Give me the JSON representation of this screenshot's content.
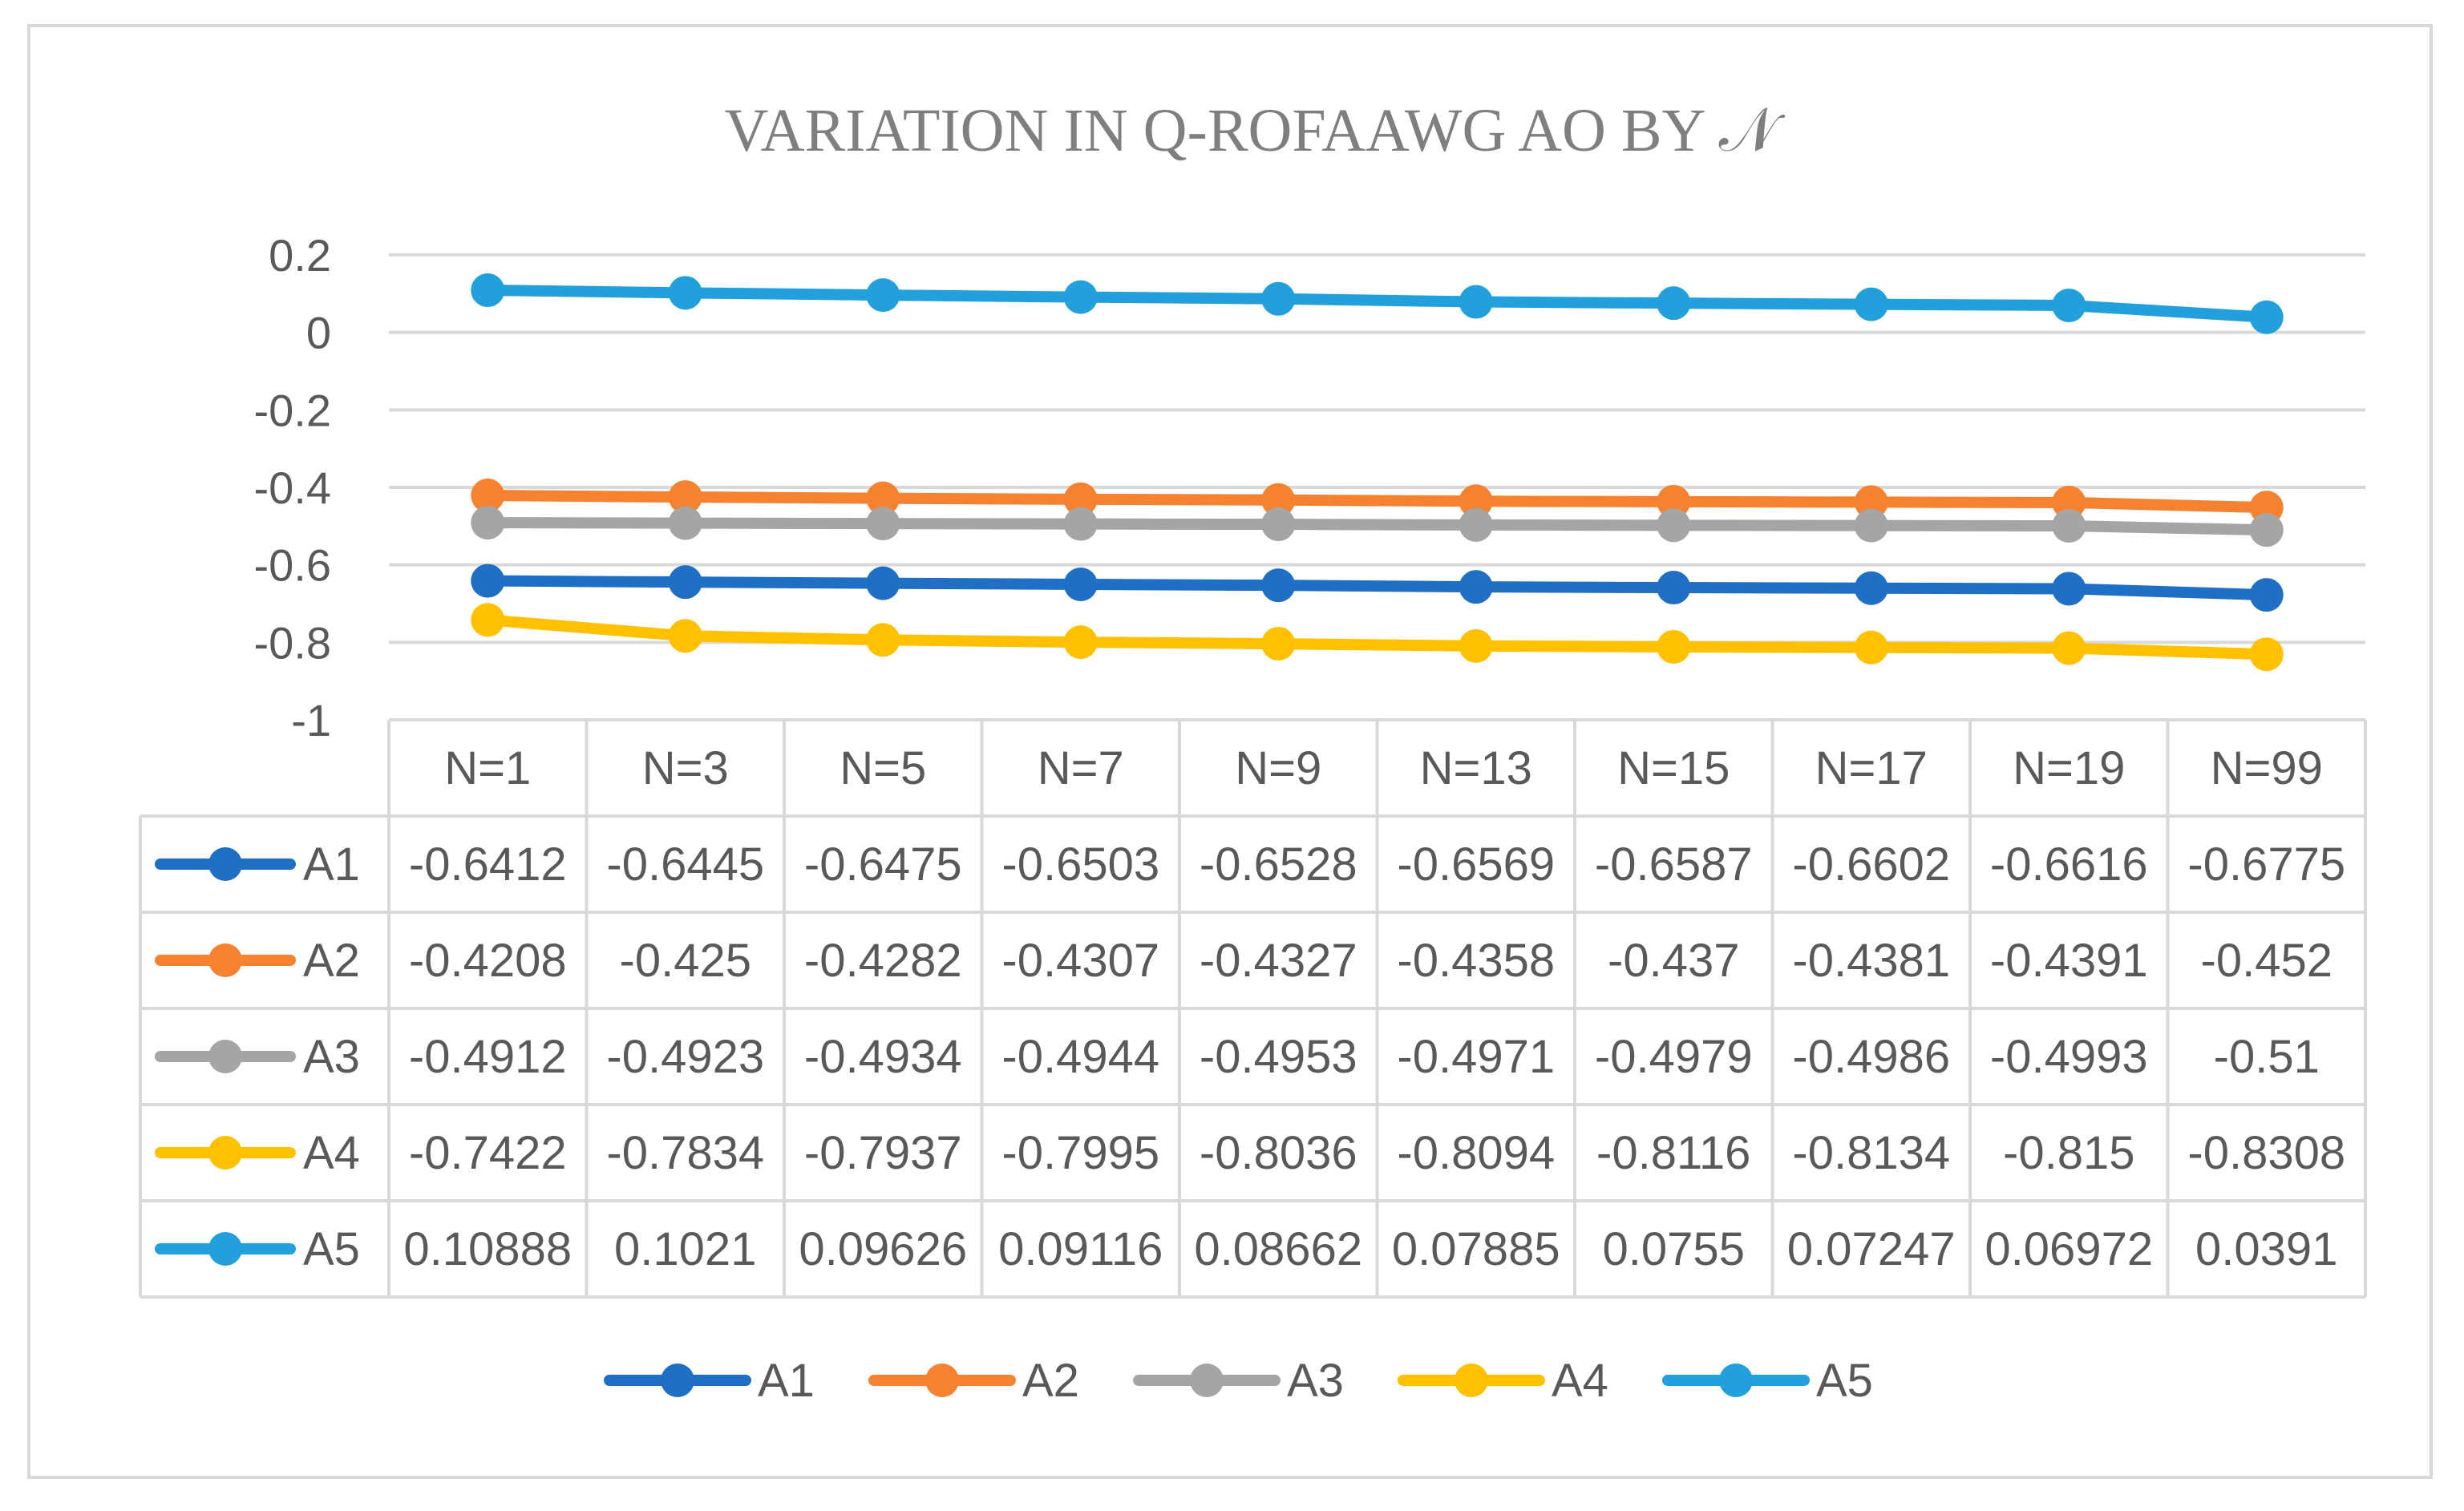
{
  "chart_data": {
    "type": "line",
    "title": "VARIATION IN Q-ROFAAWG AO BY 𝒩",
    "xlabel": "",
    "ylabel": "",
    "ylim": [
      -1,
      0.2
    ],
    "yticks": [
      "0.2",
      "0",
      "-0.2",
      "-0.4",
      "-0.6",
      "-0.8",
      "-1"
    ],
    "ytick_values": [
      0.2,
      0,
      -0.2,
      -0.4,
      -0.6,
      -0.8,
      -1
    ],
    "grid": true,
    "legend": "bottom",
    "categories": [
      "N=1",
      "N=3",
      "N=5",
      "N=7",
      "N=9",
      "N=13",
      "N=15",
      "N=17",
      "N=19",
      "N=99"
    ],
    "series": [
      {
        "name": "A1",
        "color": "#1f6fc5",
        "values": [
          -0.6412,
          -0.6445,
          -0.6475,
          -0.6503,
          -0.6528,
          -0.6569,
          -0.6587,
          -0.6602,
          -0.6616,
          -0.6775
        ],
        "labels": [
          "-0.6412",
          "-0.6445",
          "-0.6475",
          "-0.6503",
          "-0.6528",
          "-0.6569",
          "-0.6587",
          "-0.6602",
          "-0.6616",
          "-0.6775"
        ]
      },
      {
        "name": "A2",
        "color": "#f58231",
        "values": [
          -0.4208,
          -0.425,
          -0.4282,
          -0.4307,
          -0.4327,
          -0.4358,
          -0.437,
          -0.4381,
          -0.4391,
          -0.452
        ],
        "labels": [
          "-0.4208",
          "-0.425",
          "-0.4282",
          "-0.4307",
          "-0.4327",
          "-0.4358",
          "-0.437",
          "-0.4381",
          "-0.4391",
          "-0.452"
        ]
      },
      {
        "name": "A3",
        "color": "#a5a5a5",
        "values": [
          -0.4912,
          -0.4923,
          -0.4934,
          -0.4944,
          -0.4953,
          -0.4971,
          -0.4979,
          -0.4986,
          -0.4993,
          -0.51
        ],
        "labels": [
          "-0.4912",
          "-0.4923",
          "-0.4934",
          "-0.4944",
          "-0.4953",
          "-0.4971",
          "-0.4979",
          "-0.4986",
          "-0.4993",
          "-0.51"
        ]
      },
      {
        "name": "A4",
        "color": "#ffc000",
        "values": [
          -0.7422,
          -0.7834,
          -0.7937,
          -0.7995,
          -0.8036,
          -0.8094,
          -0.8116,
          -0.8134,
          -0.815,
          -0.8308
        ],
        "labels": [
          "-0.7422",
          "-0.7834",
          "-0.7937",
          "-0.7995",
          "-0.8036",
          "-0.8094",
          "-0.8116",
          "-0.8134",
          "-0.815",
          "-0.8308"
        ]
      },
      {
        "name": "A5",
        "color": "#22a0db",
        "values": [
          0.10888,
          0.1021,
          0.09626,
          0.09116,
          0.08662,
          0.07885,
          0.0755,
          0.07247,
          0.06972,
          0.0391
        ],
        "labels": [
          "0.10888",
          "0.1021",
          "0.09626",
          "0.09116",
          "0.08662",
          "0.07885",
          "0.0755",
          "0.07247",
          "0.06972",
          "0.0391"
        ]
      }
    ]
  }
}
